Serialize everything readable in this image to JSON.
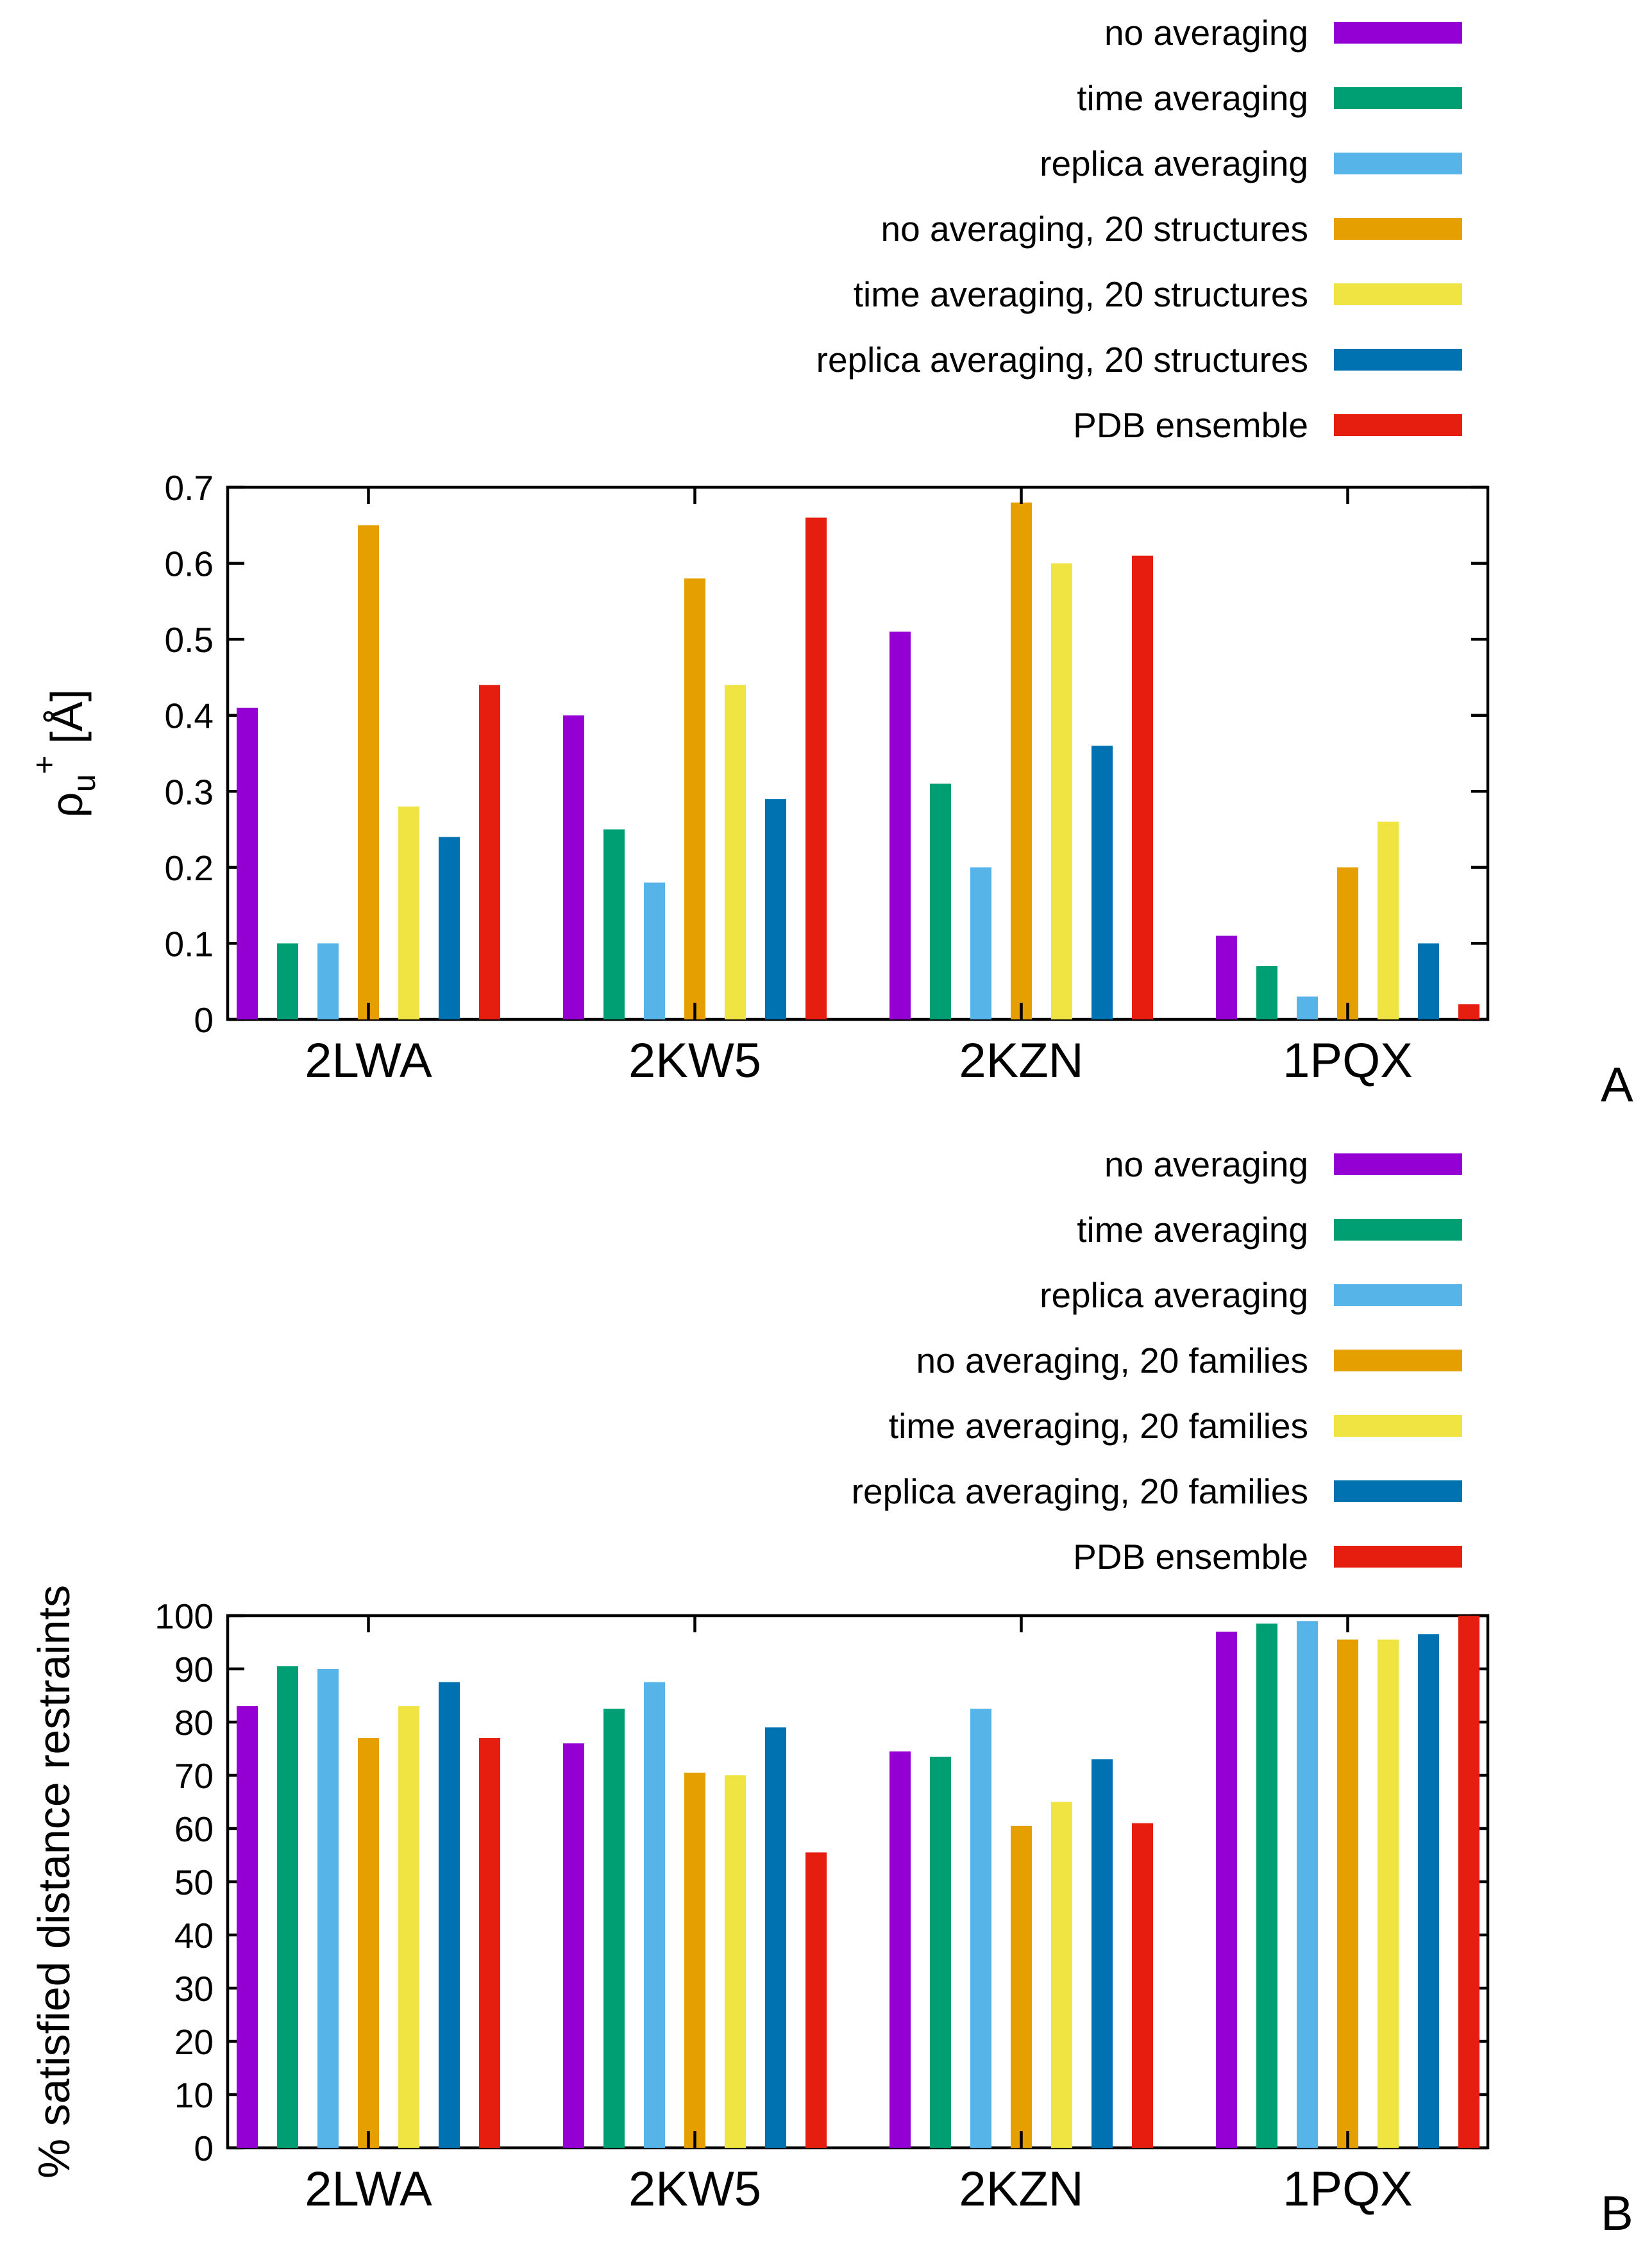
{
  "figure": {
    "panels": [
      {
        "label": "A"
      },
      {
        "label": "B"
      }
    ]
  },
  "chart_data": [
    {
      "type": "bar",
      "title": "",
      "xlabel": "",
      "ylabel": "[Å]",
      "ylabel_symbol": "ρ",
      "ylabel_sub": "u",
      "ylabel_sup": "+",
      "ylim": [
        0,
        0.7
      ],
      "yticks": [
        "0",
        "0.1",
        "0.2",
        "0.3",
        "0.4",
        "0.5",
        "0.6",
        "0.7"
      ],
      "ytick_values": [
        0,
        0.1,
        0.2,
        0.3,
        0.4,
        0.5,
        0.6,
        0.7
      ],
      "grid": false,
      "legend_position": "top-right, outside above plot",
      "categories": [
        "2LWA",
        "2KW5",
        "2KZN",
        "1PQX"
      ],
      "series": [
        {
          "name": "no averaging",
          "color": "#9400d3",
          "values": [
            0.41,
            0.4,
            0.51,
            0.11
          ]
        },
        {
          "name": "time averaging",
          "color": "#009e73",
          "values": [
            0.1,
            0.25,
            0.31,
            0.07
          ]
        },
        {
          "name": "replica averaging",
          "color": "#56b4e9",
          "values": [
            0.1,
            0.18,
            0.2,
            0.03
          ]
        },
        {
          "name": "no averaging, 20 structures",
          "color": "#e69f00",
          "values": [
            0.65,
            0.58,
            0.68,
            0.2
          ]
        },
        {
          "name": "time averaging, 20 structures",
          "color": "#f0e442",
          "values": [
            0.28,
            0.44,
            0.6,
            0.26
          ]
        },
        {
          "name": "replica averaging, 20 structures",
          "color": "#0072b2",
          "values": [
            0.24,
            0.29,
            0.36,
            0.1
          ]
        },
        {
          "name": "PDB ensemble",
          "color": "#e51e10",
          "values": [
            0.44,
            0.66,
            0.61,
            0.02
          ]
        }
      ]
    },
    {
      "type": "bar",
      "title": "",
      "xlabel": "",
      "ylabel": "% satisfied distance restraints",
      "ylim": [
        0,
        100
      ],
      "yticks": [
        "0",
        "10",
        "20",
        "30",
        "40",
        "50",
        "60",
        "70",
        "80",
        "90",
        "100"
      ],
      "ytick_values": [
        0,
        10,
        20,
        30,
        40,
        50,
        60,
        70,
        80,
        90,
        100
      ],
      "grid": false,
      "legend_position": "top-right, outside above plot",
      "categories": [
        "2LWA",
        "2KW5",
        "2KZN",
        "1PQX"
      ],
      "series": [
        {
          "name": "no averaging",
          "color": "#9400d3",
          "values": [
            83,
            76,
            74.5,
            97
          ]
        },
        {
          "name": "time averaging",
          "color": "#009e73",
          "values": [
            90.5,
            82.5,
            73.5,
            98.5
          ]
        },
        {
          "name": "replica averaging",
          "color": "#56b4e9",
          "values": [
            90,
            87.5,
            82.5,
            99
          ]
        },
        {
          "name": "no averaging, 20 families",
          "color": "#e69f00",
          "values": [
            77,
            70.5,
            60.5,
            95.5
          ]
        },
        {
          "name": "time averaging, 20 families",
          "color": "#f0e442",
          "values": [
            83,
            70,
            65,
            95.5
          ]
        },
        {
          "name": "replica averaging, 20 families",
          "color": "#0072b2",
          "values": [
            87.5,
            79,
            73,
            96.5
          ]
        },
        {
          "name": "PDB ensemble",
          "color": "#e51e10",
          "values": [
            77,
            55.5,
            61,
            100
          ]
        }
      ]
    }
  ]
}
